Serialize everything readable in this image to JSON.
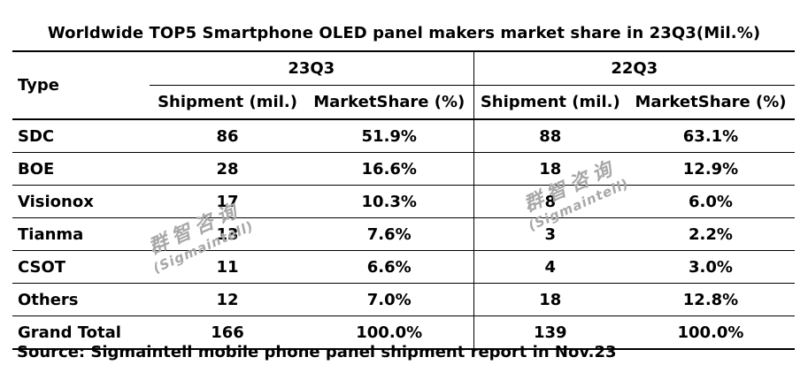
{
  "title": "Worldwide TOP5 Smartphone OLED panel makers market share  in 23Q3(Mil.%)",
  "header": {
    "type_label": "Type",
    "period_a": "23Q3",
    "period_b": "22Q3",
    "col_shipment": "Shipment (mil.)",
    "col_share": "MarketShare (%)"
  },
  "rows": [
    {
      "type": "SDC",
      "ship_a": "86",
      "share_a": "51.9%",
      "ship_b": "88",
      "share_b": "63.1%"
    },
    {
      "type": "BOE",
      "ship_a": "28",
      "share_a": "16.6%",
      "ship_b": "18",
      "share_b": "12.9%"
    },
    {
      "type": "Visionox",
      "ship_a": "17",
      "share_a": "10.3%",
      "ship_b": "8",
      "share_b": "6.0%"
    },
    {
      "type": "Tianma",
      "ship_a": "13",
      "share_a": "7.6%",
      "ship_b": "3",
      "share_b": "2.2%"
    },
    {
      "type": "CSOT",
      "ship_a": "11",
      "share_a": "6.6%",
      "ship_b": "4",
      "share_b": "3.0%"
    },
    {
      "type": "Others",
      "ship_a": "12",
      "share_a": "7.0%",
      "ship_b": "18",
      "share_b": "12.8%"
    }
  ],
  "total": {
    "type": "Grand Total",
    "ship_a": "166",
    "share_a": "100.0%",
    "ship_b": "139",
    "share_b": "100.0%"
  },
  "source": "Source: Sigmaintell mobile phone panel shipment report in Nov.23",
  "watermark": {
    "cn": "群智咨询",
    "en": "(Sigmaintell)"
  }
}
